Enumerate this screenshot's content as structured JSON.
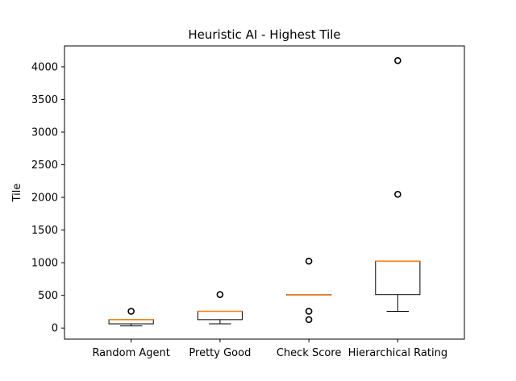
{
  "chart_data": {
    "type": "box",
    "title": "Heuristic AI - Highest Tile",
    "xlabel": "",
    "ylabel": "Tile",
    "ylim": [
      -170,
      4320
    ],
    "yticks": [
      0,
      500,
      1000,
      1500,
      2000,
      2500,
      3000,
      3500,
      4000
    ],
    "grid": false,
    "categories": [
      "Random Agent",
      "Pretty Good",
      "Check Score",
      "Hierarchical Rating"
    ],
    "boxes": [
      {
        "category": "Random Agent",
        "whislo": 32,
        "q1": 64,
        "med": 128,
        "q3": 128,
        "whishi": 128,
        "fliers": [
          256
        ]
      },
      {
        "category": "Pretty Good",
        "whislo": 64,
        "q1": 128,
        "med": 256,
        "q3": 256,
        "whishi": 256,
        "fliers": [
          512
        ]
      },
      {
        "category": "Check Score",
        "whislo": 512,
        "q1": 512,
        "med": 512,
        "q3": 512,
        "whishi": 512,
        "fliers": [
          128,
          256,
          1024
        ]
      },
      {
        "category": "Hierarchical Rating",
        "whislo": 256,
        "q1": 512,
        "med": 1024,
        "q3": 1024,
        "whishi": 1024,
        "fliers": [
          2048,
          4096
        ]
      }
    ],
    "colors": {
      "box": "#000000",
      "median": "#ff7f0e",
      "flier": "#000000"
    }
  }
}
